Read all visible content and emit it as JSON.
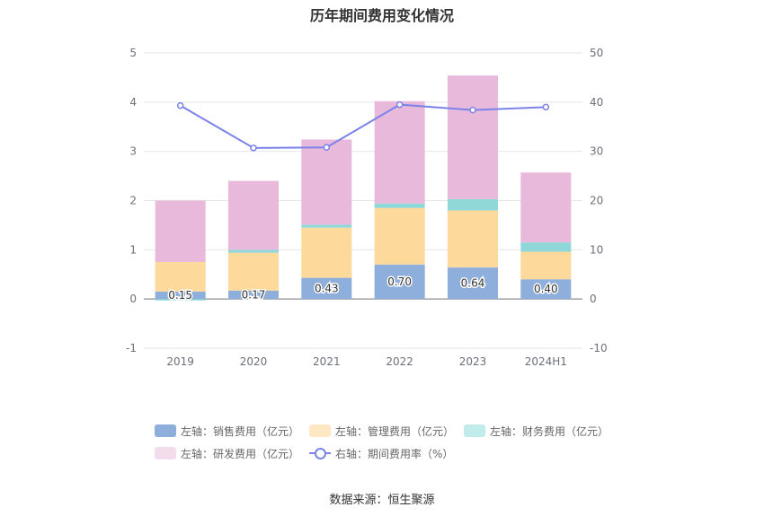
{
  "chart_data": {
    "type": "bar",
    "stacked": true,
    "title": "历年期间费用变化情况",
    "categories": [
      "2019",
      "2020",
      "2021",
      "2022",
      "2023",
      "2024H1"
    ],
    "left_axis": {
      "min": -1,
      "max": 5,
      "ticks": [
        "-1",
        "0",
        "1",
        "2",
        "3",
        "4",
        "5"
      ]
    },
    "right_axis": {
      "min": -10,
      "max": 50,
      "ticks": [
        "-10",
        "0",
        "10",
        "20",
        "30",
        "40",
        "50"
      ]
    },
    "series": [
      {
        "name": "左轴：销售费用（亿元）",
        "axis": "left",
        "color": "#8eaedc",
        "values": [
          0.15,
          0.17,
          0.43,
          0.7,
          0.64,
          0.4
        ],
        "labels": [
          "0.15",
          "0.17",
          "0.43",
          "0.70",
          "0.64",
          "0.40"
        ]
      },
      {
        "name": "左轴：管理费用（亿元）",
        "axis": "left",
        "color": "#fdd99b",
        "values": [
          0.6,
          0.77,
          1.02,
          1.15,
          1.16,
          0.56
        ]
      },
      {
        "name": "左轴：财务费用（亿元）",
        "axis": "left",
        "color": "#8fd7d9",
        "values": [
          -0.03,
          0.06,
          0.06,
          0.09,
          0.23,
          0.19
        ]
      },
      {
        "name": "左轴：研发费用（亿元）",
        "axis": "left",
        "color": "#e8b9da",
        "values": [
          1.25,
          1.4,
          1.73,
          2.08,
          2.51,
          1.42
        ]
      },
      {
        "name": "右轴：期间费用率（%）",
        "axis": "right",
        "type": "line",
        "color": "#7b83ea",
        "values": [
          39.3,
          30.7,
          30.8,
          39.5,
          38.4,
          39.0
        ]
      }
    ]
  },
  "legend": [
    {
      "label": "左轴：销售费用（亿元）",
      "color": "#8eaedc",
      "kind": "box"
    },
    {
      "label": "左轴：管理费用（亿元）",
      "color": "#fde8c3",
      "kind": "box"
    },
    {
      "label": "左轴：财务费用（亿元）",
      "color": "#c2ebeb",
      "kind": "box"
    },
    {
      "label": "左轴：研发费用（亿元）",
      "color": "#f3dcec",
      "kind": "box"
    },
    {
      "label": "右轴：期间费用率（%）",
      "color": "#7b83ea",
      "kind": "line"
    }
  ],
  "source": "数据来源：恒生聚源"
}
